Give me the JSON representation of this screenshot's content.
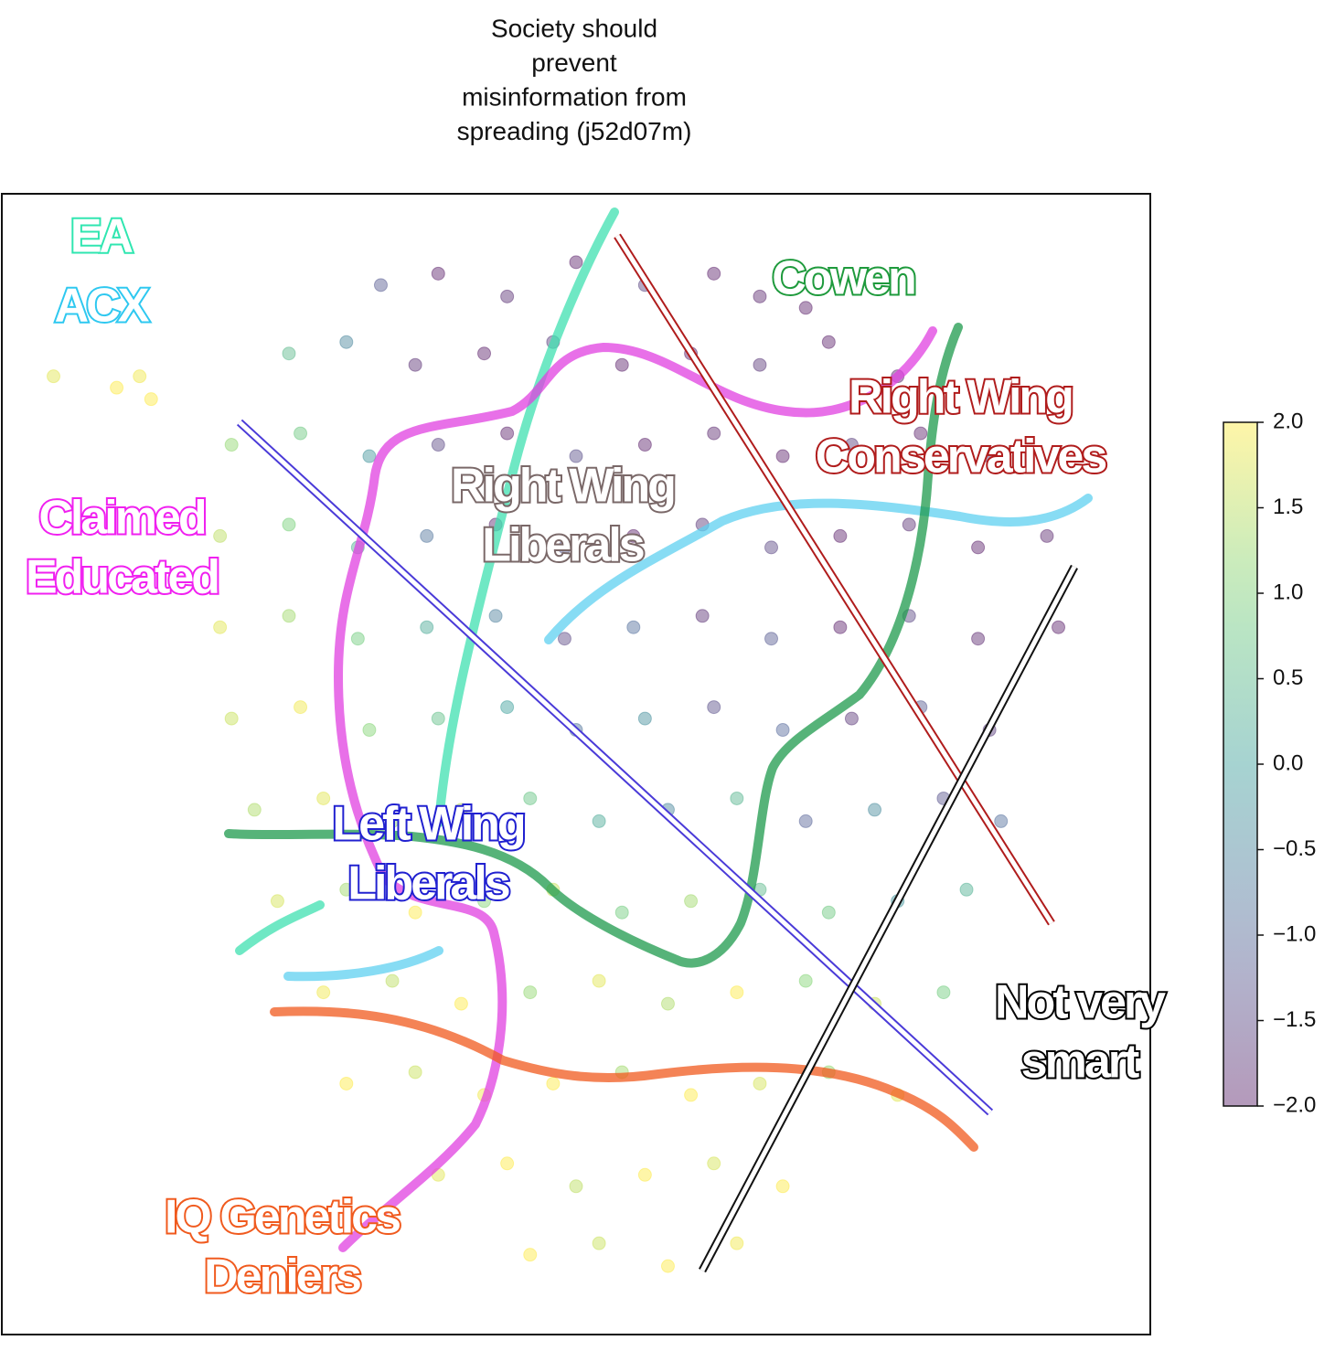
{
  "chart_data": {
    "type": "scatter",
    "title": [
      "Society should",
      "prevent",
      "misinformation from",
      "spreading (j52d07m)"
    ],
    "xlim": [
      0,
      100
    ],
    "ylim": [
      0,
      100
    ],
    "colormap": "viridis",
    "alpha": 0.4,
    "x": [
      33,
      38,
      44,
      50,
      56,
      62,
      66,
      70,
      25,
      30,
      36,
      42,
      48,
      54,
      60,
      66,
      72,
      78,
      20,
      26,
      32,
      38,
      44,
      50,
      56,
      62,
      68,
      74,
      80,
      86,
      19,
      25,
      31,
      37,
      43,
      49,
      55,
      61,
      67,
      73,
      79,
      85,
      91,
      19,
      25,
      31,
      37,
      43,
      49,
      55,
      61,
      67,
      73,
      79,
      85,
      92,
      20,
      26,
      32,
      38,
      44,
      50,
      56,
      62,
      68,
      74,
      80,
      86,
      22,
      28,
      34,
      40,
      46,
      52,
      58,
      64,
      70,
      76,
      82,
      87,
      24,
      30,
      36,
      42,
      48,
      54,
      60,
      66,
      72,
      78,
      84,
      28,
      34,
      40,
      46,
      52,
      58,
      64,
      70,
      76,
      82,
      30,
      36,
      42,
      48,
      54,
      60,
      66,
      72,
      78,
      38,
      44,
      50,
      56,
      62,
      68,
      46,
      52,
      58,
      64,
      4.5,
      10,
      12,
      13
    ],
    "y": [
      92,
      93,
      91,
      94,
      92,
      93,
      91,
      90,
      86,
      87,
      85,
      86,
      87,
      85,
      86,
      85,
      87,
      84,
      78,
      79,
      77,
      78,
      79,
      77,
      78,
      79,
      77,
      78,
      79,
      77,
      70,
      71,
      69,
      70,
      71,
      69,
      70,
      71,
      69,
      70,
      71,
      69,
      70,
      62,
      63,
      61,
      62,
      63,
      61,
      62,
      63,
      61,
      62,
      63,
      61,
      62,
      54,
      55,
      53,
      54,
      55,
      53,
      54,
      55,
      53,
      54,
      55,
      53,
      46,
      47,
      45,
      46,
      47,
      45,
      46,
      47,
      45,
      46,
      47,
      45,
      38,
      39,
      37,
      38,
      39,
      37,
      38,
      39,
      37,
      38,
      39,
      30,
      31,
      29,
      30,
      31,
      29,
      30,
      31,
      29,
      30,
      22,
      23,
      21,
      22,
      23,
      21,
      22,
      23,
      21,
      14,
      15,
      13,
      14,
      15,
      13,
      7,
      8,
      6,
      8,
      84,
      83,
      84,
      82
    ],
    "values": [
      -1.2,
      -2,
      -1.8,
      -2,
      -1.5,
      -2,
      -1.9,
      -2,
      0.5,
      -0.5,
      -1.8,
      -2,
      -1.6,
      -2,
      -2,
      -1.7,
      -2,
      -1.9,
      1.2,
      0.8,
      -0.2,
      -1.5,
      -2,
      -1.4,
      -2,
      -1.9,
      -2,
      -1.6,
      -2,
      -1.8,
      1.5,
      1.0,
      0.3,
      -0.8,
      -1.9,
      -1.2,
      -2,
      -1.7,
      -1.5,
      -2,
      -1.8,
      -2,
      -1.9,
      1.8,
      1.3,
      0.9,
      0.2,
      -0.6,
      -1.5,
      -0.9,
      -1.8,
      -1.2,
      -2,
      -1.5,
      -1.9,
      -2,
      1.6,
      1.9,
      1.1,
      0.6,
      0.0,
      -0.8,
      -0.3,
      -1.4,
      -1.0,
      -1.7,
      -1.2,
      -1.6,
      1.4,
      1.8,
      1.2,
      1.5,
      0.7,
      0.2,
      -0.5,
      0.4,
      -1.1,
      -0.4,
      -1.3,
      -0.9,
      1.7,
      1.3,
      2,
      1.1,
      1.6,
      0.9,
      1.3,
      0.5,
      0.8,
      -0.2,
      0.3,
      1.9,
      1.5,
      2,
      1.2,
      1.8,
      1.4,
      2,
      1.1,
      1.6,
      0.9,
      2,
      1.6,
      1.9,
      2,
      1.3,
      2,
      1.7,
      1.2,
      1.8,
      1.8,
      2,
      1.5,
      2,
      1.7,
      2,
      2,
      1.6,
      2,
      1.9,
      1.8,
      2,
      1.9,
      2
    ],
    "colorbar": {
      "lim": [
        -2,
        2
      ],
      "ticks": [
        {
          "value": 2.0,
          "label": "2.0"
        },
        {
          "value": 1.5,
          "label": "1.5"
        },
        {
          "value": 1.0,
          "label": "1.0"
        },
        {
          "value": 0.5,
          "label": "0.5"
        },
        {
          "value": 0.0,
          "label": "0.0"
        },
        {
          "value": -0.5,
          "label": "−0.5"
        },
        {
          "value": -1.0,
          "label": "−1.0"
        },
        {
          "value": -1.5,
          "label": "−1.5"
        },
        {
          "value": -2.0,
          "label": "−2.0"
        }
      ]
    },
    "annotations": [
      {
        "lines": [
          "EA"
        ],
        "color": "#2fe6b0"
      },
      {
        "lines": [
          "ACX"
        ],
        "color": "#2ec8f0"
      },
      {
        "lines": [
          "Cowen"
        ],
        "color": "#1e9a3c"
      },
      {
        "lines": [
          "Right Wing",
          "Conservatives"
        ],
        "color": "#b01c1c"
      },
      {
        "lines": [
          "Right Wing",
          "Liberals"
        ],
        "color": "#7a6868"
      },
      {
        "lines": [
          "Claimed",
          "Educated"
        ],
        "color": "#f020f0"
      },
      {
        "lines": [
          "Left Wing",
          "Liberals"
        ],
        "color": "#2020d0"
      },
      {
        "lines": [
          "Not very",
          "smart"
        ],
        "color": "#000000"
      },
      {
        "lines": [
          "IQ Genetics",
          "Deniers"
        ],
        "color": "#f05a1e"
      }
    ]
  }
}
